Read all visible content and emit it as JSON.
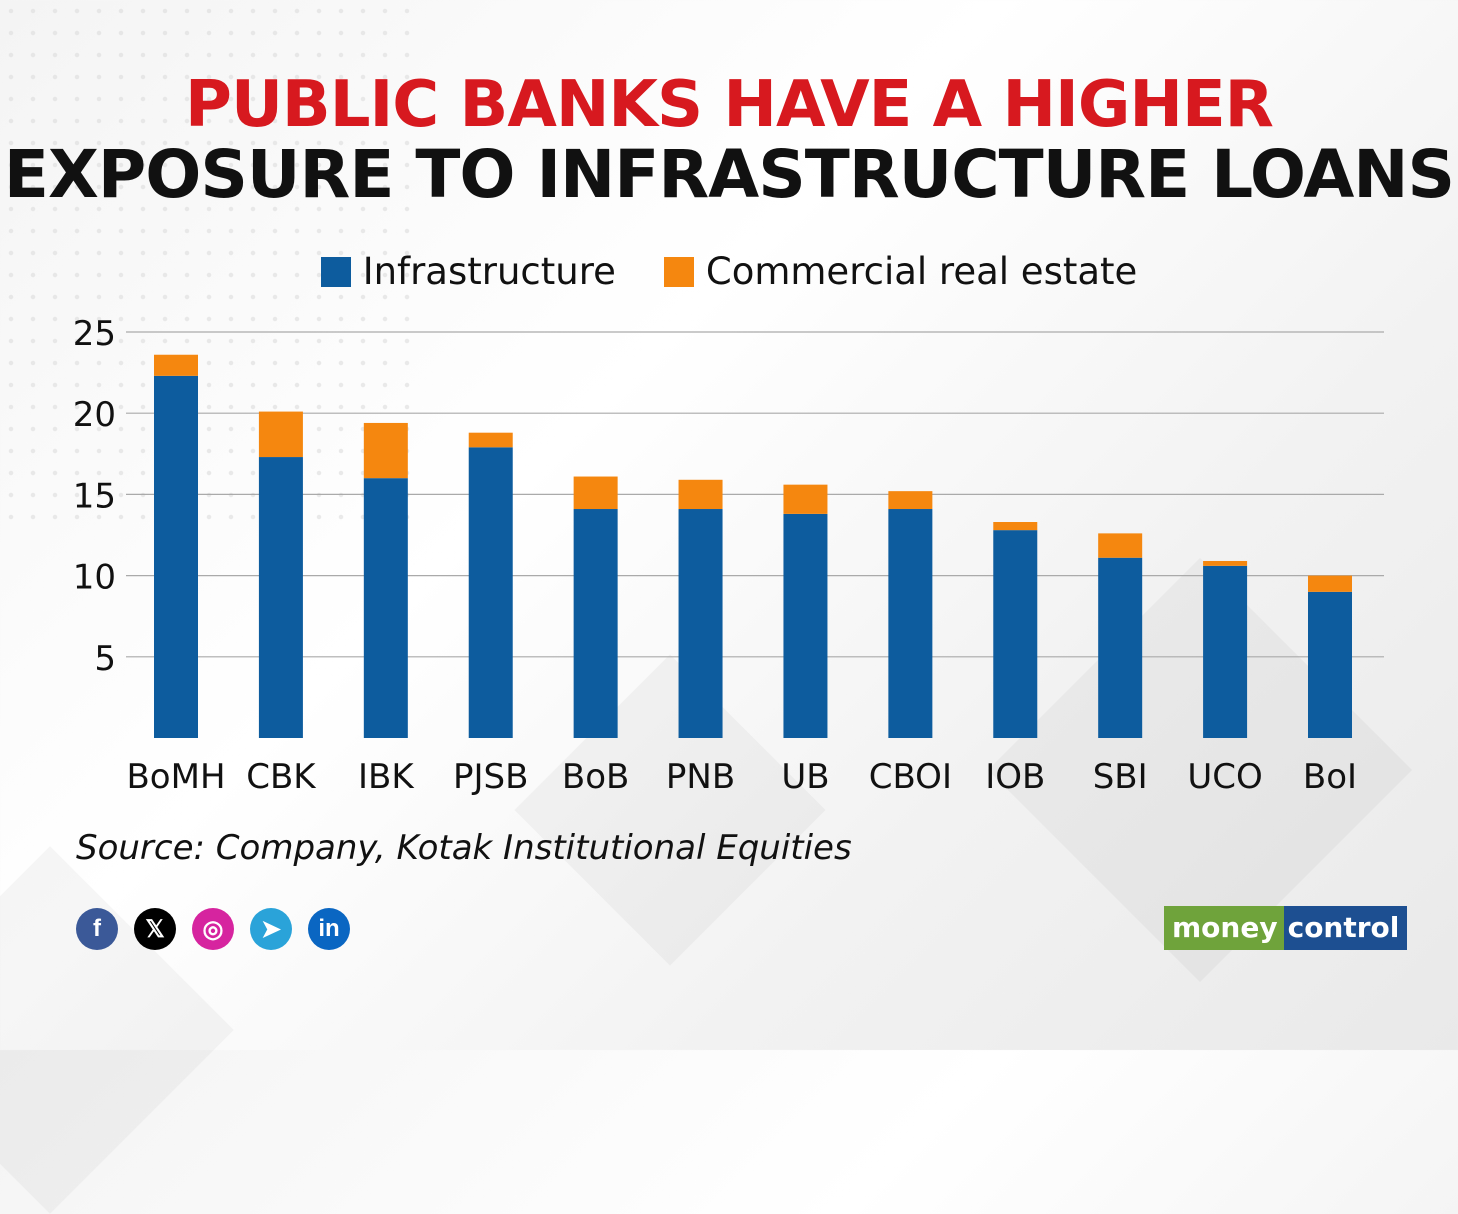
{
  "title_line1": "PUBLIC BANKS HAVE A HIGHER",
  "title_line2": "EXPOSURE TO INFRASTRUCTURE LOANS",
  "source": "Source: Company, Kotak Institutional Equities",
  "logo": {
    "part1": "money",
    "part2": "control"
  },
  "socials": [
    {
      "icon": "facebook-icon",
      "glyph": "f",
      "color": "#3b5998"
    },
    {
      "icon": "x-icon",
      "glyph": "𝕏",
      "color": "#000000"
    },
    {
      "icon": "instagram-icon",
      "glyph": "◎",
      "color": "#d6249f"
    },
    {
      "icon": "telegram-icon",
      "glyph": "➤",
      "color": "#2aa3d9"
    },
    {
      "icon": "linkedin-icon",
      "glyph": "in",
      "color": "#0a66c2"
    }
  ],
  "chart_data": {
    "type": "bar",
    "stacked": true,
    "title": "PUBLIC BANKS HAVE A HIGHER EXPOSURE TO INFRASTRUCTURE LOANS",
    "categories": [
      "BoMH",
      "CBK",
      "IBK",
      "PJSB",
      "BoB",
      "PNB",
      "UB",
      "CBOI",
      "IOB",
      "SBI",
      "UCO",
      "BoI"
    ],
    "series": [
      {
        "name": "Infrastructure",
        "color": "#0d5c9e",
        "values": [
          22.3,
          17.3,
          16.0,
          17.9,
          14.1,
          14.1,
          13.8,
          14.1,
          12.8,
          11.1,
          10.6,
          9.0
        ]
      },
      {
        "name": "Commercial real estate",
        "color": "#f5870f",
        "values": [
          1.3,
          2.8,
          3.4,
          0.9,
          2.0,
          1.8,
          1.8,
          1.1,
          0.5,
          1.5,
          0.3,
          1.0
        ]
      }
    ],
    "yticks": [
      5,
      10,
      15,
      20,
      25
    ],
    "ylim": [
      0,
      25
    ],
    "grid": true,
    "legend": "top-center",
    "xlabel": "",
    "ylabel": ""
  }
}
